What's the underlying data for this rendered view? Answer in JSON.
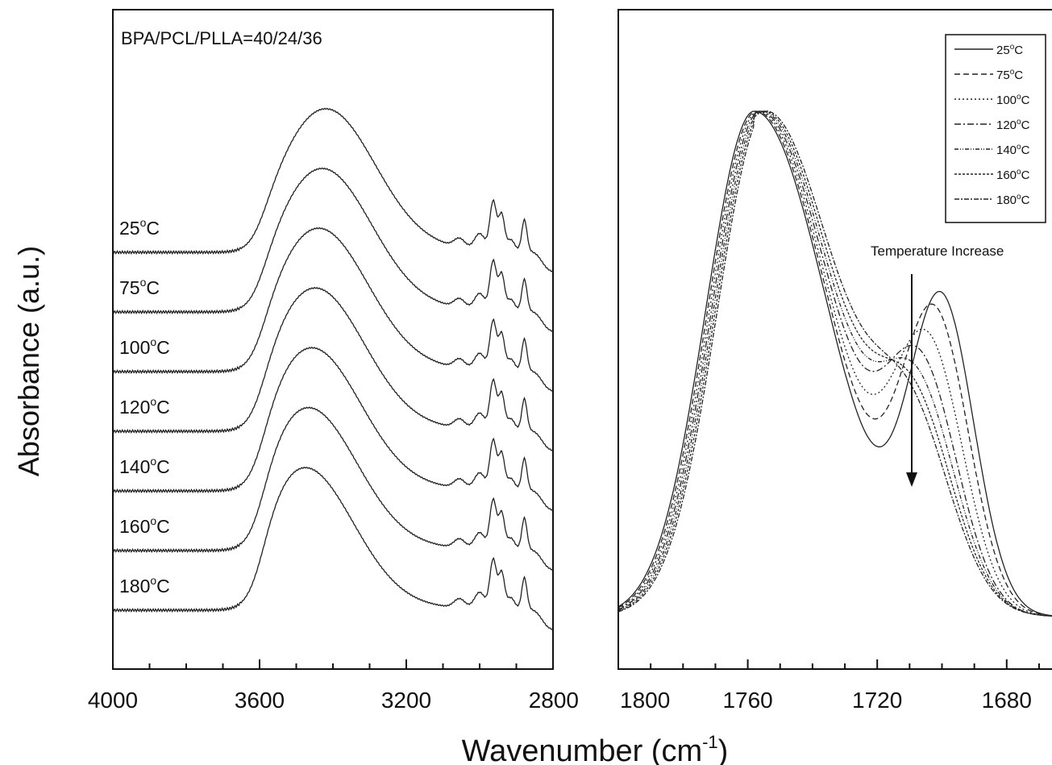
{
  "figure": {
    "ylabel": "Absorbance (a.u.)",
    "xlabel_main": "Wavenumber (cm",
    "xlabel_sup": "-1",
    "xlabel_close": ")",
    "degree_symbol": "o"
  },
  "chart_data": [
    {
      "type": "line",
      "panel": "left",
      "annotation": "BPA/PCL/PLLA=40/24/36",
      "xlim": [
        4000,
        2800
      ],
      "x_reversed": true,
      "xticks": [
        4000,
        3600,
        3200,
        2800
      ],
      "ylabel": "Absorbance (a.u.)",
      "y_units": "arbitrary, stacked curves",
      "peaks_x": [
        3420,
        3470,
        3490,
        2960,
        2940,
        2880
      ],
      "series": [
        {
          "name": "25",
          "unit": "C",
          "offset": 6,
          "peak_x": 3420,
          "peak_height": 1.6
        },
        {
          "name": "75",
          "unit": "C",
          "offset": 5,
          "peak_x": 3430,
          "peak_height": 1.6
        },
        {
          "name": "100",
          "unit": "C",
          "offset": 4,
          "peak_x": 3440,
          "peak_height": 1.6
        },
        {
          "name": "120",
          "unit": "C",
          "offset": 3,
          "peak_x": 3450,
          "peak_height": 1.6
        },
        {
          "name": "140",
          "unit": "C",
          "offset": 2,
          "peak_x": 3460,
          "peak_height": 1.6
        },
        {
          "name": "160",
          "unit": "C",
          "offset": 1,
          "peak_x": 3470,
          "peak_height": 1.6
        },
        {
          "name": "180",
          "unit": "C",
          "offset": 0,
          "peak_x": 3480,
          "peak_height": 1.6
        }
      ]
    },
    {
      "type": "line",
      "panel": "right",
      "xlim": [
        1800,
        1666
      ],
      "x_reversed": true,
      "xticks": [
        1800,
        1760,
        1720,
        1680
      ],
      "legend_position": "top-right",
      "annotation": "Temperature Increase",
      "series": [
        {
          "name": "25",
          "unit": "C",
          "dash": "",
          "shoulder_x": 1700,
          "shoulder_height": 0.6
        },
        {
          "name": "75",
          "unit": "C",
          "dash": "7 4",
          "shoulder_x": 1702,
          "shoulder_height": 0.56
        },
        {
          "name": "100",
          "unit": "C",
          "dash": "2 3",
          "shoulder_x": 1704,
          "shoulder_height": 0.49
        },
        {
          "name": "120",
          "unit": "C",
          "dash": "8 3 2 3",
          "shoulder_x": 1706,
          "shoulder_height": 0.43
        },
        {
          "name": "140",
          "unit": "C",
          "dash": "5 2 1 2 1 2",
          "shoulder_x": 1707,
          "shoulder_height": 0.38
        },
        {
          "name": "160",
          "unit": "C",
          "dash": "3 2",
          "shoulder_x": 1708,
          "shoulder_height": 0.34
        },
        {
          "name": "180",
          "unit": "C",
          "dash": "6 2 2 2",
          "shoulder_x": 1709,
          "shoulder_height": 0.31
        }
      ]
    }
  ]
}
